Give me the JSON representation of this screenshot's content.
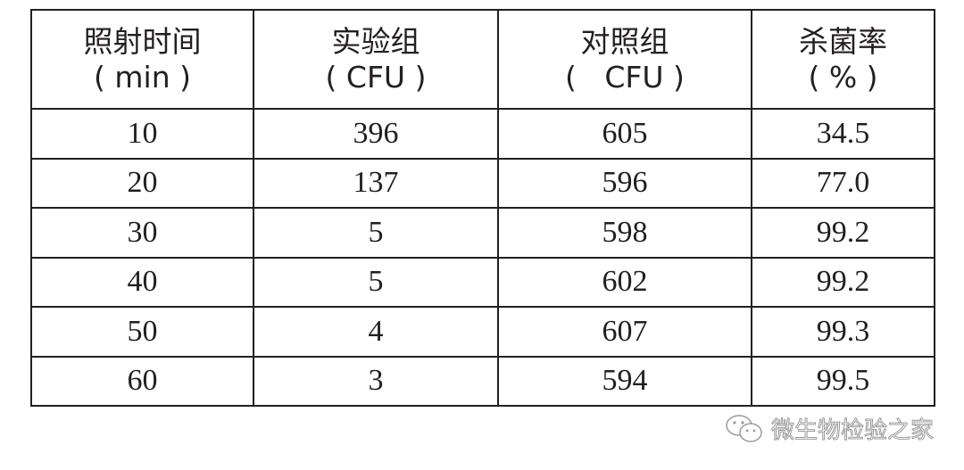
{
  "table": {
    "headers": [
      {
        "line1": "照射时间",
        "line2": "( min )"
      },
      {
        "line1": "实验组",
        "line2": "( CFU )"
      },
      {
        "line1": "对照组",
        "line2": "(   CFU )"
      },
      {
        "line1": "杀菌率",
        "line2": "( % )"
      }
    ],
    "rows": [
      [
        "10",
        "396",
        "605",
        "34.5"
      ],
      [
        "20",
        "137",
        "596",
        "77.0"
      ],
      [
        "30",
        "5",
        "598",
        "99.2"
      ],
      [
        "40",
        "5",
        "602",
        "99.2"
      ],
      [
        "50",
        "4",
        "607",
        "99.3"
      ],
      [
        "60",
        "3",
        "594",
        "99.5"
      ]
    ]
  },
  "watermark": {
    "icon": "wechat-icon",
    "text": "微生物检验之家"
  }
}
